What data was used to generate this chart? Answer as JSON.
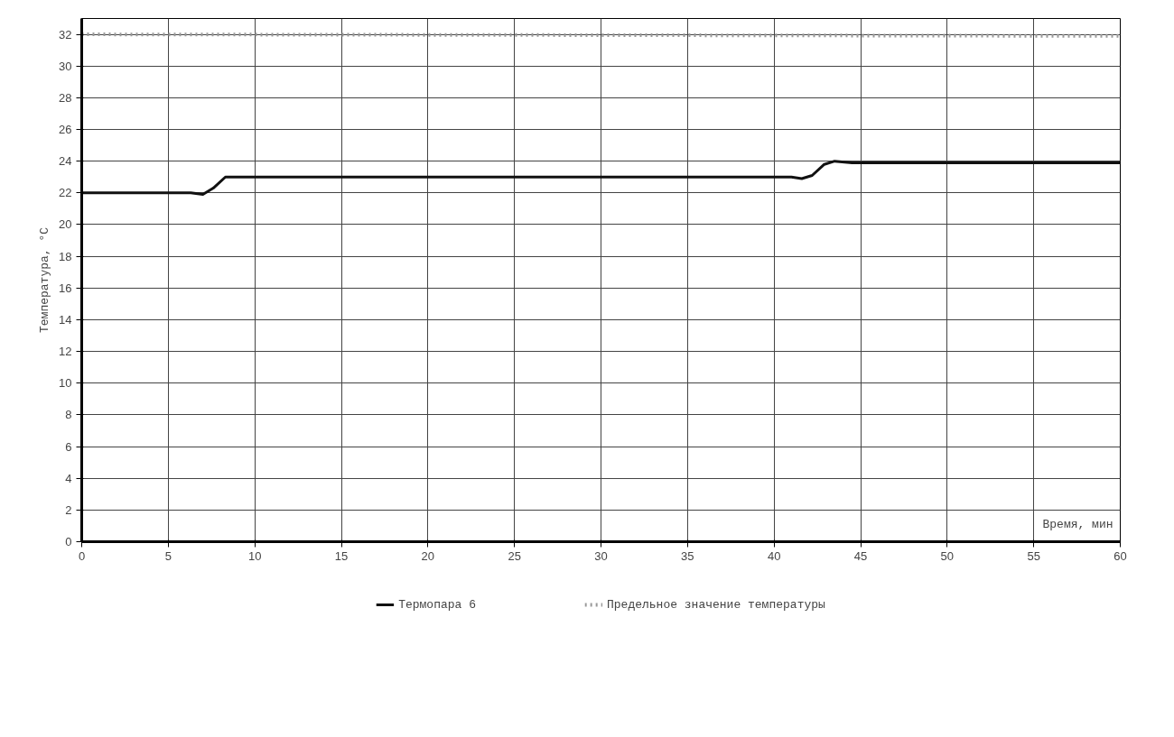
{
  "chart_data": {
    "type": "line",
    "xlabel": "Время, мин",
    "ylabel": "Температура, °C",
    "xlim": [
      0,
      60
    ],
    "ylim": [
      0,
      33
    ],
    "xticks": [
      0,
      5,
      10,
      15,
      20,
      25,
      30,
      35,
      40,
      45,
      50,
      55,
      60
    ],
    "yticks": [
      0,
      2,
      4,
      6,
      8,
      10,
      12,
      14,
      16,
      18,
      20,
      22,
      24,
      26,
      28,
      30,
      32
    ],
    "grid": true,
    "legend": "bottom",
    "marker": "none",
    "series": [
      {
        "name": "Термопара 6",
        "color": "#111111",
        "line_style": "solid",
        "x": [
          0,
          6.3,
          7,
          7.6,
          8.3,
          9,
          20,
          41,
          41.6,
          42.2,
          42.9,
          43.5,
          44.5,
          60
        ],
        "values": [
          22,
          22,
          21.9,
          22.3,
          23.0,
          23.0,
          23.0,
          23.0,
          22.9,
          23.1,
          23.8,
          24.0,
          23.9,
          23.9
        ]
      },
      {
        "name": "Предельное значение температуры",
        "color": "#999999",
        "line_style": "dotted",
        "x": [
          0,
          60
        ],
        "values": [
          32,
          31.9
        ]
      }
    ]
  }
}
